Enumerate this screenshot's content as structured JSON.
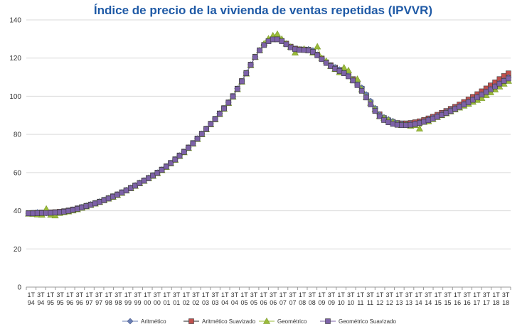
{
  "chart_data": {
    "type": "line",
    "title": "Índice de precio de la vivienda de ventas repetidas (IPVVR)",
    "xlabel": "",
    "ylabel": "",
    "ylim": [
      0,
      140
    ],
    "yticks": [
      0,
      20,
      40,
      60,
      80,
      100,
      120,
      140
    ],
    "grid": true,
    "legend_position": "bottom",
    "x_tick_labels": [
      {
        "q": "1T",
        "y": "94"
      },
      {
        "q": "3T",
        "y": "94"
      },
      {
        "q": "1T",
        "y": "95"
      },
      {
        "q": "3T",
        "y": "95"
      },
      {
        "q": "1T",
        "y": "96"
      },
      {
        "q": "3T",
        "y": "96"
      },
      {
        "q": "1T",
        "y": "97"
      },
      {
        "q": "3T",
        "y": "97"
      },
      {
        "q": "1T",
        "y": "98"
      },
      {
        "q": "3T",
        "y": "98"
      },
      {
        "q": "1T",
        "y": "99"
      },
      {
        "q": "3T",
        "y": "99"
      },
      {
        "q": "1T",
        "y": "00"
      },
      {
        "q": "3T",
        "y": "00"
      },
      {
        "q": "1T",
        "y": "01"
      },
      {
        "q": "3T",
        "y": "01"
      },
      {
        "q": "1T",
        "y": "02"
      },
      {
        "q": "3T",
        "y": "02"
      },
      {
        "q": "1T",
        "y": "03"
      },
      {
        "q": "3T",
        "y": "03"
      },
      {
        "q": "1T",
        "y": "04"
      },
      {
        "q": "3T",
        "y": "04"
      },
      {
        "q": "1T",
        "y": "05"
      },
      {
        "q": "3T",
        "y": "05"
      },
      {
        "q": "1T",
        "y": "06"
      },
      {
        "q": "3T",
        "y": "06"
      },
      {
        "q": "1T",
        "y": "07"
      },
      {
        "q": "3T",
        "y": "07"
      },
      {
        "q": "1T",
        "y": "08"
      },
      {
        "q": "3T",
        "y": "08"
      },
      {
        "q": "1T",
        "y": "09"
      },
      {
        "q": "3T",
        "y": "09"
      },
      {
        "q": "1T",
        "y": "10"
      },
      {
        "q": "3T",
        "y": "10"
      },
      {
        "q": "1T",
        "y": "11"
      },
      {
        "q": "3T",
        "y": "11"
      },
      {
        "q": "1T",
        "y": "12"
      },
      {
        "q": "3T",
        "y": "12"
      },
      {
        "q": "1T",
        "y": "13"
      },
      {
        "q": "3T",
        "y": "13"
      },
      {
        "q": "1T",
        "y": "14"
      },
      {
        "q": "3T",
        "y": "14"
      },
      {
        "q": "1T",
        "y": "15"
      },
      {
        "q": "3T",
        "y": "15"
      },
      {
        "q": "1T",
        "y": "16"
      },
      {
        "q": "3T",
        "y": "16"
      },
      {
        "q": "1T",
        "y": "17"
      },
      {
        "q": "3T",
        "y": "17"
      },
      {
        "q": "1T",
        "y": "18"
      },
      {
        "q": "3T",
        "y": "18"
      }
    ],
    "series": [
      {
        "name": "Aritmético",
        "color": "#6a7fb5",
        "marker": "diamond",
        "values": [
          38.7,
          38.9,
          39.2,
          39.0,
          38.8,
          38.6,
          39.0,
          39.3,
          39.6,
          40.1,
          40.6,
          41.3,
          42.0,
          42.7,
          43.4,
          44.1,
          44.9,
          45.8,
          46.7,
          47.6,
          48.6,
          49.7,
          50.9,
          52.1,
          53.4,
          54.7,
          56.0,
          57.3,
          58.6,
          60.0,
          61.6,
          63.3,
          65.1,
          67.0,
          69.0,
          71.0,
          73.2,
          75.5,
          77.9,
          80.4,
          83.0,
          85.6,
          88.2,
          91.0,
          93.8,
          96.8,
          100.1,
          104.0,
          108.0,
          112.2,
          116.6,
          120.7,
          124.1,
          127.1,
          129.2,
          130.0,
          130.0,
          129.0,
          127.5,
          125.8,
          124.8,
          124.5,
          124.4,
          124.6,
          124.0,
          121.8,
          119.6,
          117.5,
          116.3,
          115.2,
          114.0,
          112.8,
          111.2,
          108.8,
          107.5,
          104.5,
          101.0,
          97.5,
          93.8,
          90.5,
          89.0,
          88.0,
          87.0,
          86.0,
          85.6,
          85.4,
          85.5,
          85.8,
          86.3,
          87.0,
          87.9,
          88.8,
          89.8,
          90.8,
          91.8,
          92.8,
          93.8,
          94.9,
          96.0,
          97.2,
          98.4,
          99.7,
          101.0,
          102.4,
          103.8,
          105.3,
          106.8,
          108.4,
          110.0
        ]
      },
      {
        "name": "Aritmético Suavizado",
        "color": "#c0504d",
        "marker": "square",
        "values": [
          38.8,
          38.9,
          39.0,
          39.1,
          39.1,
          39.2,
          39.3,
          39.5,
          39.8,
          40.2,
          40.7,
          41.3,
          41.9,
          42.6,
          43.3,
          44.0,
          44.8,
          45.7,
          46.6,
          47.6,
          48.6,
          49.7,
          50.8,
          52.0,
          53.3,
          54.6,
          55.9,
          57.2,
          58.6,
          60.0,
          61.6,
          63.3,
          65.1,
          67.0,
          69.0,
          71.0,
          73.2,
          75.5,
          77.9,
          80.4,
          83.0,
          85.6,
          88.2,
          91.0,
          93.8,
          96.8,
          100.1,
          104.0,
          108.0,
          112.2,
          116.6,
          120.7,
          124.1,
          126.9,
          128.9,
          129.8,
          129.8,
          129.0,
          127.6,
          126.0,
          125.0,
          124.6,
          124.5,
          124.4,
          123.6,
          121.8,
          119.8,
          117.8,
          116.3,
          115.0,
          113.8,
          112.5,
          111.0,
          109.0,
          106.8,
          104.0,
          100.5,
          96.8,
          93.4,
          90.6,
          88.6,
          87.4,
          86.6,
          86.0,
          85.8,
          85.8,
          86.0,
          86.4,
          86.9,
          87.6,
          88.4,
          89.3,
          90.3,
          91.3,
          92.3,
          93.4,
          94.5,
          95.7,
          97.0,
          98.3,
          99.7,
          101.1,
          102.6,
          104.1,
          105.7,
          107.3,
          109.0,
          110.6,
          112.0
        ]
      },
      {
        "name": "Geométrico",
        "color": "#9bbb3a",
        "marker": "triangle",
        "values": [
          38.4,
          38.3,
          38.0,
          37.8,
          41.0,
          37.8,
          37.5,
          38.8,
          39.2,
          39.6,
          40.1,
          40.7,
          41.5,
          42.2,
          43.0,
          43.7,
          44.5,
          45.4,
          46.3,
          47.2,
          48.2,
          49.3,
          50.5,
          51.7,
          53.0,
          54.3,
          55.6,
          56.9,
          58.2,
          59.6,
          61.2,
          62.9,
          64.7,
          66.6,
          68.6,
          70.6,
          72.8,
          75.1,
          77.5,
          80.0,
          82.6,
          85.2,
          87.8,
          90.6,
          93.4,
          96.4,
          99.7,
          103.6,
          107.6,
          111.8,
          116.2,
          120.5,
          124.0,
          127.6,
          130.2,
          131.8,
          132.6,
          130.0,
          127.5,
          125.8,
          122.8,
          124.5,
          124.8,
          124.0,
          122.8,
          126.0,
          120.0,
          118.5,
          115.8,
          114.2,
          112.5,
          115.0,
          113.5,
          108.5,
          109.0,
          103.5,
          99.5,
          96.5,
          93.0,
          89.5,
          88.5,
          87.5,
          86.5,
          85.5,
          84.8,
          85.0,
          84.5,
          84.8,
          83.0,
          86.5,
          86.8,
          88.0,
          89.0,
          90.0,
          91.0,
          92.0,
          93.0,
          94.0,
          95.0,
          96.0,
          97.0,
          98.0,
          99.0,
          100.5,
          102.0,
          103.5,
          105.0,
          106.5,
          108.0
        ]
      },
      {
        "name": "Geométrico Suavizado",
        "color": "#7d62a8",
        "marker": "square",
        "values": [
          38.6,
          38.6,
          38.7,
          38.8,
          38.8,
          38.9,
          39.0,
          39.2,
          39.5,
          39.9,
          40.4,
          41.0,
          41.7,
          42.4,
          43.1,
          43.8,
          44.6,
          45.5,
          46.4,
          47.4,
          48.4,
          49.5,
          50.6,
          51.8,
          53.1,
          54.4,
          55.7,
          57.0,
          58.4,
          59.8,
          61.4,
          63.1,
          64.9,
          66.8,
          68.8,
          70.8,
          73.0,
          75.3,
          77.7,
          80.2,
          82.8,
          85.4,
          88.0,
          90.8,
          93.6,
          96.6,
          99.9,
          103.8,
          107.8,
          112.0,
          116.4,
          120.5,
          124.0,
          126.8,
          128.8,
          129.8,
          129.8,
          128.8,
          127.2,
          125.6,
          124.6,
          124.3,
          124.2,
          124.0,
          123.2,
          121.4,
          119.4,
          117.4,
          115.8,
          114.4,
          113.2,
          112.0,
          110.4,
          108.2,
          105.8,
          102.8,
          99.3,
          95.7,
          92.3,
          89.5,
          87.5,
          86.3,
          85.5,
          85.0,
          84.8,
          84.8,
          85.0,
          85.4,
          85.9,
          86.6,
          87.4,
          88.3,
          89.2,
          90.2,
          91.2,
          92.2,
          93.3,
          94.4,
          95.6,
          96.8,
          98.1,
          99.4,
          100.8,
          102.2,
          103.6,
          105.1,
          106.6,
          108.0,
          109.3
        ]
      }
    ]
  }
}
